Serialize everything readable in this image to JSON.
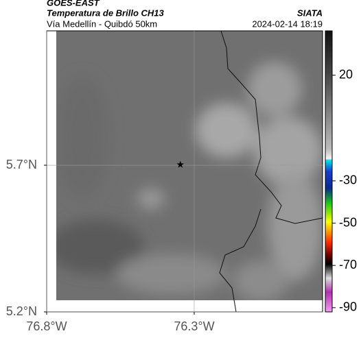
{
  "chart_data": {
    "type": "map",
    "title": "GOES-EAST",
    "subtitle": "Temperatura de Brillo CH13",
    "source": "SIATA",
    "region": "Vía Medellín - Quibdó 50km",
    "timestamp": "2024-02-14 18:19",
    "xlim": [
      -76.8,
      -75.865
    ],
    "ylim": [
      5.2,
      6.158
    ],
    "xticks": [
      {
        "value": -76.8,
        "label": "76.8°W"
      },
      {
        "value": -76.3,
        "label": "76.3°W"
      }
    ],
    "yticks": [
      {
        "value": 5.2,
        "label": "5.2°N"
      },
      {
        "value": 5.7,
        "label": "5.7°N"
      }
    ],
    "grid": true,
    "marker": {
      "lon": -76.347,
      "lat": 5.702,
      "color": "#000000"
    },
    "colorbar": {
      "lim": [
        -92,
        41
      ],
      "ticks": [
        20,
        -30,
        -50,
        -70,
        -90
      ]
    }
  }
}
